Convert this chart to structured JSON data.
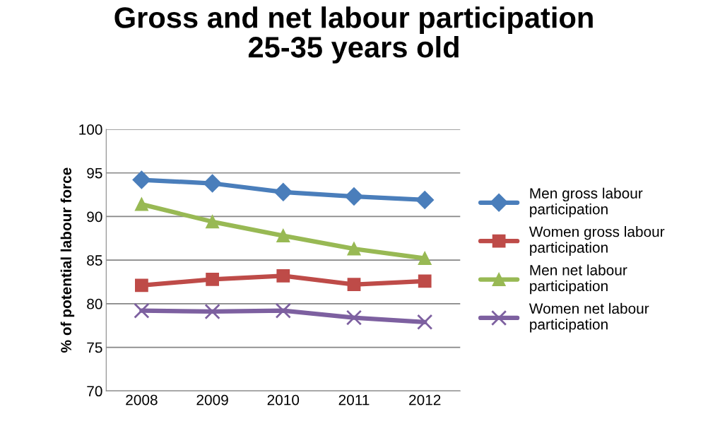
{
  "chart_data": {
    "type": "line",
    "title": "Gross and net labour participation\n25-35 years old",
    "ylabel": "% of potential labour force",
    "categories": [
      "2008",
      "2009",
      "2010",
      "2011",
      "2012"
    ],
    "series": [
      {
        "name": "Men gross labour participation",
        "color": "#4a7ebb",
        "marker": "diamond",
        "values": [
          94.2,
          93.8,
          92.8,
          92.3,
          91.9
        ]
      },
      {
        "name": "Women gross labour participation",
        "color": "#be4b48",
        "marker": "square",
        "values": [
          82.1,
          82.8,
          83.2,
          82.2,
          82.6
        ]
      },
      {
        "name": "Men net labour participation",
        "color": "#98b954",
        "marker": "triangle",
        "values": [
          91.4,
          89.4,
          87.8,
          86.3,
          85.2
        ]
      },
      {
        "name": "Women net labour participation",
        "color": "#7d60a0",
        "marker": "cross",
        "values": [
          79.2,
          79.1,
          79.2,
          78.4,
          77.9
        ]
      }
    ],
    "ylim": [
      70,
      100
    ],
    "yticks": [
      70,
      75,
      80,
      85,
      90,
      95,
      100
    ],
    "grid": "y",
    "legend": "right",
    "line_style": "solid"
  }
}
